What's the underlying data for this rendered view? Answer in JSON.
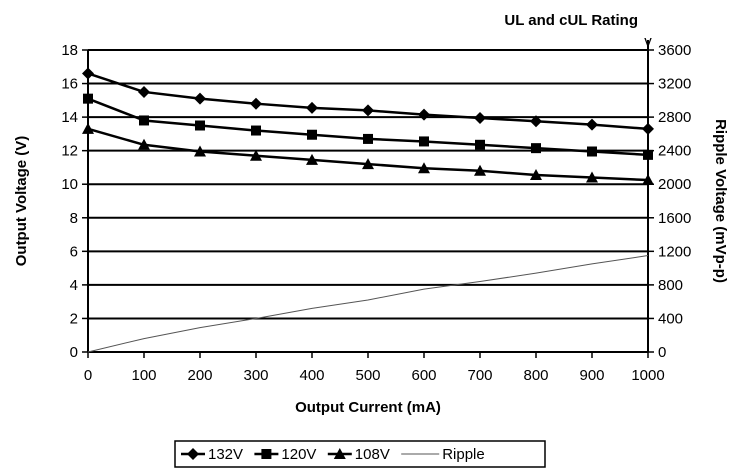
{
  "chart_data": {
    "type": "line",
    "title": "UL and cUL Rating",
    "xlabel": "Output Current (mA)",
    "ylabel": "Output Voltage (V)",
    "ylabel_right": "Ripple Voltage (mVp-p)",
    "right_axis_unit_mark": "v",
    "xlim": [
      0,
      1000
    ],
    "ylim": [
      0,
      18
    ],
    "ylim_right": [
      0,
      3600
    ],
    "x_ticks": [
      "0",
      "100",
      "200",
      "300",
      "400",
      "500",
      "600",
      "700",
      "800",
      "900",
      "1000"
    ],
    "y_ticks": [
      "0",
      "2",
      "4",
      "6",
      "8",
      "10",
      "12",
      "14",
      "16",
      "18"
    ],
    "y_ticks_right": [
      "0",
      "400",
      "800",
      "1200",
      "1600",
      "2000",
      "2400",
      "2800",
      "3200",
      "3600"
    ],
    "grid": "horizontal",
    "legend_position": "bottom",
    "x": [
      0,
      100,
      200,
      300,
      400,
      500,
      600,
      700,
      800,
      900,
      1000
    ],
    "series": [
      {
        "name": "132V",
        "axis": "left",
        "marker": "diamond",
        "values": [
          16.6,
          15.5,
          15.1,
          14.8,
          14.55,
          14.4,
          14.15,
          13.95,
          13.75,
          13.55,
          13.3
        ]
      },
      {
        "name": "120V",
        "axis": "left",
        "marker": "square",
        "values": [
          15.1,
          13.8,
          13.5,
          13.2,
          12.95,
          12.7,
          12.55,
          12.35,
          12.15,
          11.95,
          11.75
        ]
      },
      {
        "name": "108V",
        "axis": "left",
        "marker": "triangle",
        "values": [
          13.3,
          12.35,
          11.95,
          11.7,
          11.45,
          11.2,
          10.95,
          10.8,
          10.55,
          10.4,
          10.25
        ]
      },
      {
        "name": "Ripple",
        "axis": "right",
        "marker": "none",
        "values": [
          0,
          160,
          290,
          400,
          520,
          620,
          750,
          840,
          940,
          1050,
          1150
        ]
      }
    ]
  }
}
